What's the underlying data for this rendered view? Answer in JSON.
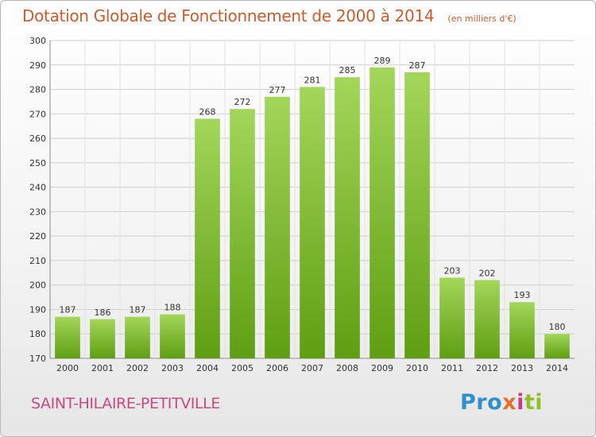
{
  "title": "Dotation Globale de Fonctionnement de 2000 à 2014",
  "subtitle": "(en milliers d'€)",
  "commune": "SAINT-HILAIRE-PETITVILLE",
  "logo": [
    "Pro",
    "x",
    "i",
    "ti"
  ],
  "colors": {
    "title": "#d05a2a",
    "commune": "#c74a82",
    "bar_light": "#9fd34a",
    "bar_dark": "#5f9e12"
  },
  "chart_data": {
    "type": "bar",
    "title": "Dotation Globale de Fonctionnement de 2000 à 2014",
    "subtitle": "(en milliers d'€)",
    "categories": [
      "2000",
      "2001",
      "2002",
      "2003",
      "2004",
      "2005",
      "2006",
      "2007",
      "2008",
      "2009",
      "2010",
      "2011",
      "2012",
      "2013",
      "2014"
    ],
    "values": [
      187,
      186,
      187,
      188,
      268,
      272,
      277,
      281,
      285,
      289,
      287,
      203,
      202,
      193,
      180
    ],
    "ylim": [
      170,
      300
    ],
    "yticks": [
      170,
      180,
      190,
      200,
      210,
      220,
      230,
      240,
      250,
      260,
      270,
      280,
      290,
      300
    ],
    "grid": true,
    "legend": false
  }
}
